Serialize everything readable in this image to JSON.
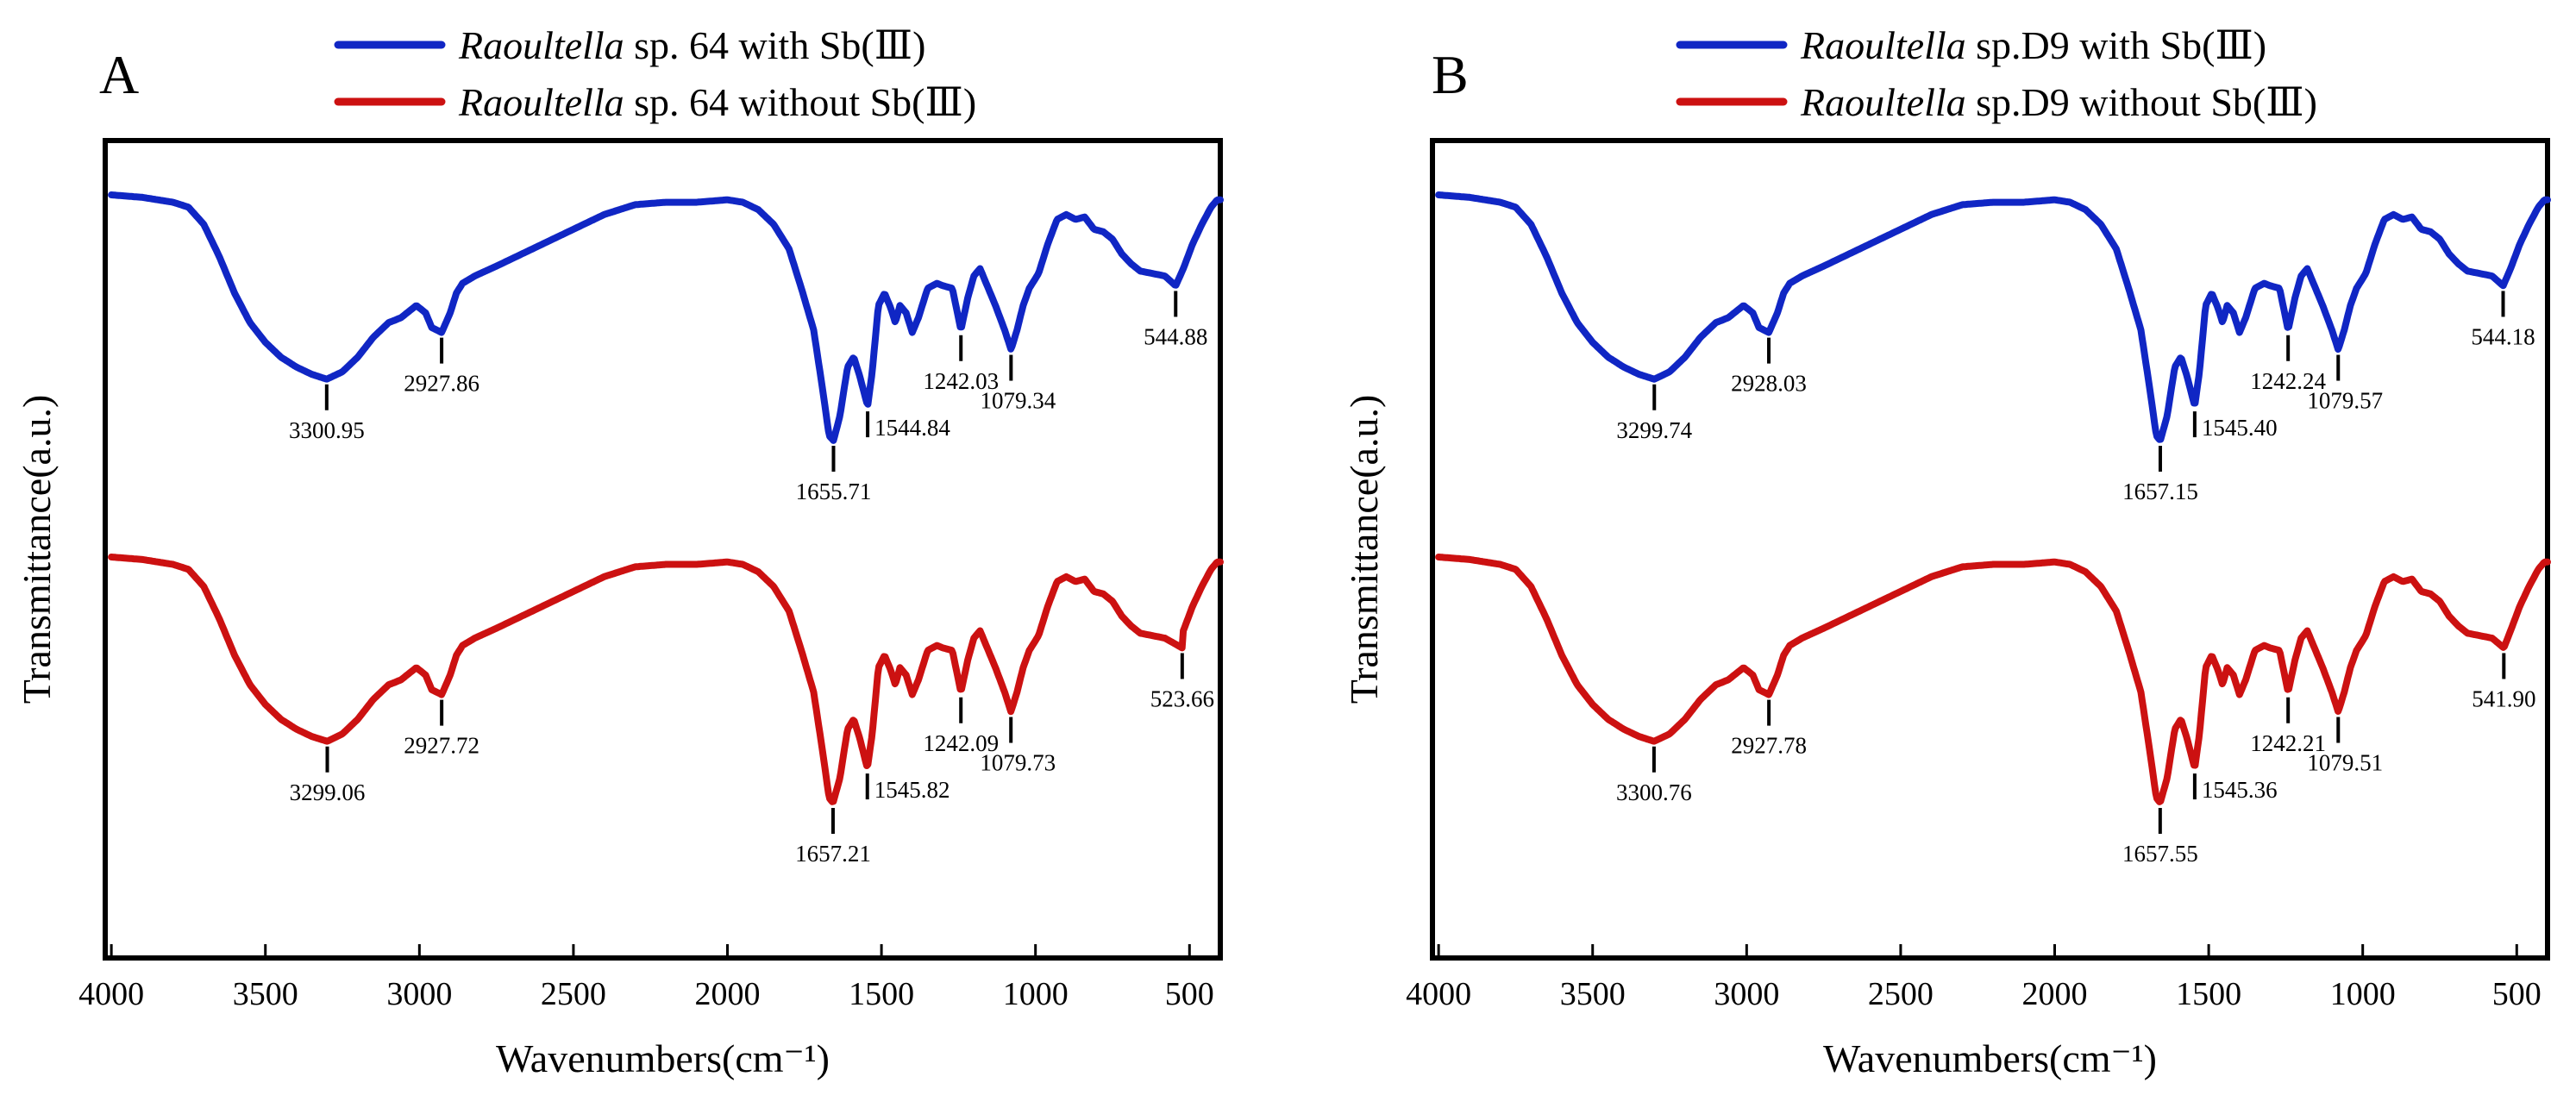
{
  "colors": {
    "with_sb": "#1026c4",
    "without_sb": "#cc1111",
    "axis": "#000000"
  },
  "chart_data": [
    {
      "type": "line",
      "panel": "A",
      "xlabel": "Wavenumbers(cm⁻¹)",
      "ylabel": "Transmittance(a.u.)",
      "x_ticks": [
        4000,
        3500,
        3000,
        2500,
        2000,
        1500,
        1000,
        500
      ],
      "xlim": [
        4000,
        400
      ],
      "grid": false,
      "legend_position": "top-center",
      "series": [
        {
          "name": "Raoultella sp. 64 with Sb(III)",
          "legend_italic": "Raoultella",
          "legend_rest": " sp. 64 with Sb(Ⅲ)",
          "color": "#1026c4",
          "peaks": [
            {
              "label": "3300.95",
              "x": 3300.95
            },
            {
              "label": "2927.86",
              "x": 2927.86
            },
            {
              "label": "1655.71",
              "x": 1655.71
            },
            {
              "label": "1544.84",
              "x": 1544.84
            },
            {
              "label": "1242.03",
              "x": 1242.03
            },
            {
              "label": "1079.34",
              "x": 1079.34
            },
            {
              "label": "544.88",
              "x": 544.88
            }
          ]
        },
        {
          "name": "Raoultella sp. 64 without Sb(III)",
          "legend_italic": "Raoultella",
          "legend_rest": " sp. 64 without Sb(Ⅲ)",
          "color": "#cc1111",
          "peaks": [
            {
              "label": "3299.06",
              "x": 3299.06
            },
            {
              "label": "2927.72",
              "x": 2927.72
            },
            {
              "label": "1657.21",
              "x": 1657.21
            },
            {
              "label": "1545.82",
              "x": 1545.82
            },
            {
              "label": "1242.09",
              "x": 1242.09
            },
            {
              "label": "1079.73",
              "x": 1079.73
            },
            {
              "label": "523.66",
              "x": 523.66
            }
          ]
        }
      ]
    },
    {
      "type": "line",
      "panel": "B",
      "xlabel": "Wavenumbers(cm⁻¹)",
      "ylabel": "Transmittance(a.u.)",
      "x_ticks": [
        4000,
        3500,
        3000,
        2500,
        2000,
        1500,
        1000,
        500
      ],
      "xlim": [
        4000,
        400
      ],
      "grid": false,
      "legend_position": "top-center",
      "series": [
        {
          "name": "Raoultella sp.D9 with Sb(III)",
          "legend_italic": "Raoultella",
          "legend_rest": " sp.D9 with Sb(Ⅲ)",
          "color": "#1026c4",
          "peaks": [
            {
              "label": "3299.74",
              "x": 3299.74
            },
            {
              "label": "2928.03",
              "x": 2928.03
            },
            {
              "label": "1657.15",
              "x": 1657.15
            },
            {
              "label": "1545.40",
              "x": 1545.4
            },
            {
              "label": "1242.24",
              "x": 1242.24
            },
            {
              "label": "1079.57",
              "x": 1079.57
            },
            {
              "label": "544.18",
              "x": 544.18
            }
          ]
        },
        {
          "name": "Raoultella sp.D9 without Sb(III)",
          "legend_italic": "Raoultella",
          "legend_rest": " sp.D9 without Sb(Ⅲ)",
          "color": "#cc1111",
          "peaks": [
            {
              "label": "3300.76",
              "x": 3300.76
            },
            {
              "label": "2927.78",
              "x": 2927.78
            },
            {
              "label": "1657.55",
              "x": 1657.55
            },
            {
              "label": "1545.36",
              "x": 1545.36
            },
            {
              "label": "1242.21",
              "x": 1242.21
            },
            {
              "label": "1079.51",
              "x": 1079.51
            },
            {
              "label": "541.90",
              "x": 541.9
            }
          ]
        }
      ]
    }
  ]
}
